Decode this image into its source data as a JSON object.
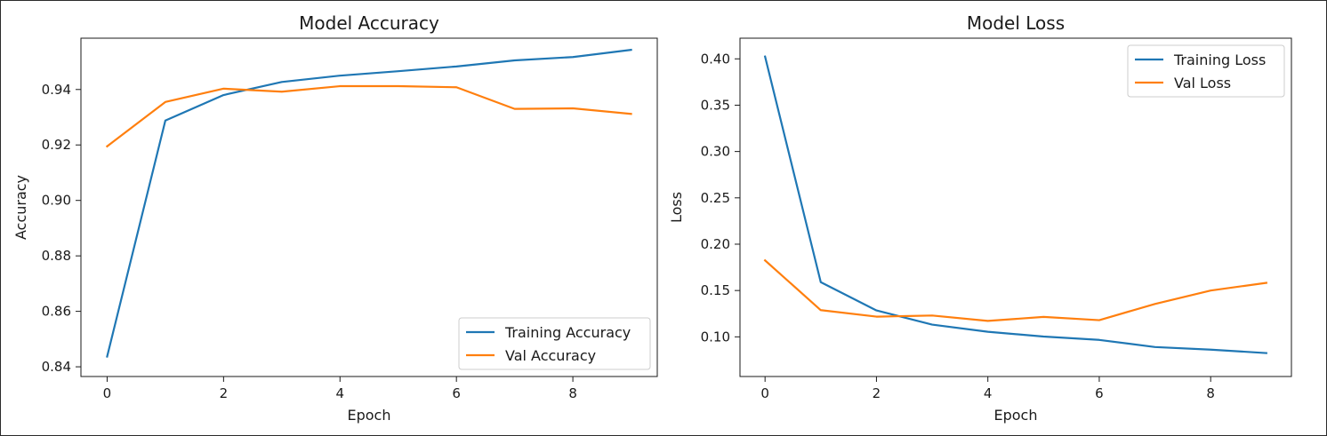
{
  "chart_data": [
    {
      "type": "line",
      "title": "Model Accuracy",
      "xlabel": "Epoch",
      "ylabel": "Accuracy",
      "xlim": [
        -0.45,
        9.45
      ],
      "ylim": [
        0.8365,
        0.9585
      ],
      "xticks": [
        0,
        2,
        4,
        6,
        8
      ],
      "xtick_labels": [
        "0",
        "2",
        "4",
        "6",
        "8"
      ],
      "yticks": [
        0.84,
        0.86,
        0.88,
        0.9,
        0.92,
        0.94
      ],
      "ytick_labels": [
        "0.84",
        "0.86",
        "0.88",
        "0.90",
        "0.92",
        "0.94"
      ],
      "grid": false,
      "legend_position": "lower-right",
      "x": [
        0,
        1,
        2,
        3,
        4,
        5,
        6,
        7,
        8,
        9
      ],
      "series": [
        {
          "name": "Training Accuracy",
          "color": "#1f77b4",
          "values": [
            0.8437,
            0.9288,
            0.938,
            0.9427,
            0.945,
            0.9466,
            0.9483,
            0.9505,
            0.9517,
            0.9543
          ]
        },
        {
          "name": "Val Accuracy",
          "color": "#ff7f0e",
          "values": [
            0.9195,
            0.9355,
            0.9403,
            0.9392,
            0.9412,
            0.9412,
            0.9408,
            0.933,
            0.9332,
            0.9312
          ]
        }
      ]
    },
    {
      "type": "line",
      "title": "Model Loss",
      "xlabel": "Epoch",
      "ylabel": "Loss",
      "xlim": [
        -0.45,
        9.45
      ],
      "ylim": [
        0.0572,
        0.4223
      ],
      "xticks": [
        0,
        2,
        4,
        6,
        8
      ],
      "xtick_labels": [
        "0",
        "2",
        "4",
        "6",
        "8"
      ],
      "yticks": [
        0.1,
        0.15,
        0.2,
        0.25,
        0.3,
        0.35,
        0.4
      ],
      "ytick_labels": [
        "0.10",
        "0.15",
        "0.20",
        "0.25",
        "0.30",
        "0.35",
        "0.40"
      ],
      "grid": false,
      "legend_position": "upper-right",
      "x": [
        0,
        1,
        2,
        3,
        4,
        5,
        6,
        7,
        8,
        9
      ],
      "series": [
        {
          "name": "Training Loss",
          "color": "#1f77b4",
          "values": [
            0.4025,
            0.159,
            0.1285,
            0.1132,
            0.1055,
            0.1003,
            0.0967,
            0.089,
            0.0862,
            0.0825
          ]
        },
        {
          "name": "Val Loss",
          "color": "#ff7f0e",
          "values": [
            0.1825,
            0.1288,
            0.1218,
            0.123,
            0.1172,
            0.1215,
            0.118,
            0.1355,
            0.15,
            0.1583
          ]
        }
      ]
    }
  ]
}
